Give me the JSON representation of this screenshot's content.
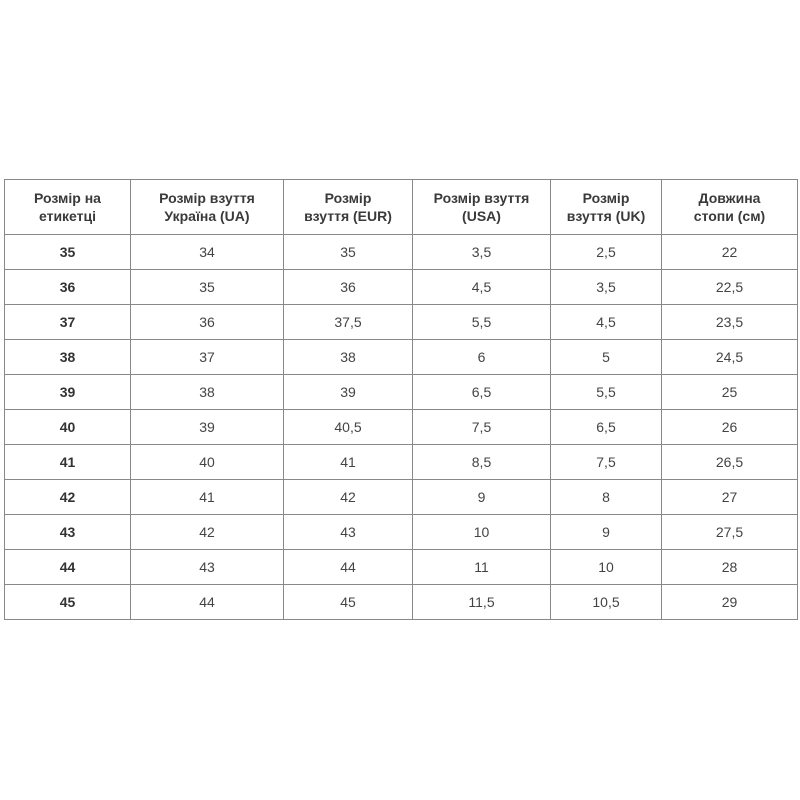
{
  "table": {
    "headers": [
      "Розмір на етикетці",
      "Розмір взуття Україна (UA)",
      "Розмір взуття (EUR)",
      "Розмір взуття (USA)",
      "Розмір взуття (UK)",
      "Довжина стопи (см)"
    ],
    "rows": [
      [
        "35",
        "34",
        "35",
        "3,5",
        "2,5",
        "22"
      ],
      [
        "36",
        "35",
        "36",
        "4,5",
        "3,5",
        "22,5"
      ],
      [
        "37",
        "36",
        "37,5",
        "5,5",
        "4,5",
        "23,5"
      ],
      [
        "38",
        "37",
        "38",
        "6",
        "5",
        "24,5"
      ],
      [
        "39",
        "38",
        "39",
        "6,5",
        "5,5",
        "25"
      ],
      [
        "40",
        "39",
        "40,5",
        "7,5",
        "6,5",
        "26"
      ],
      [
        "41",
        "40",
        "41",
        "8,5",
        "7,5",
        "26,5"
      ],
      [
        "42",
        "41",
        "42",
        "9",
        "8",
        "27"
      ],
      [
        "43",
        "42",
        "43",
        "10",
        "9",
        "27,5"
      ],
      [
        "44",
        "43",
        "44",
        "11",
        "10",
        "28"
      ],
      [
        "45",
        "44",
        "45",
        "11,5",
        "10,5",
        "29"
      ]
    ]
  }
}
